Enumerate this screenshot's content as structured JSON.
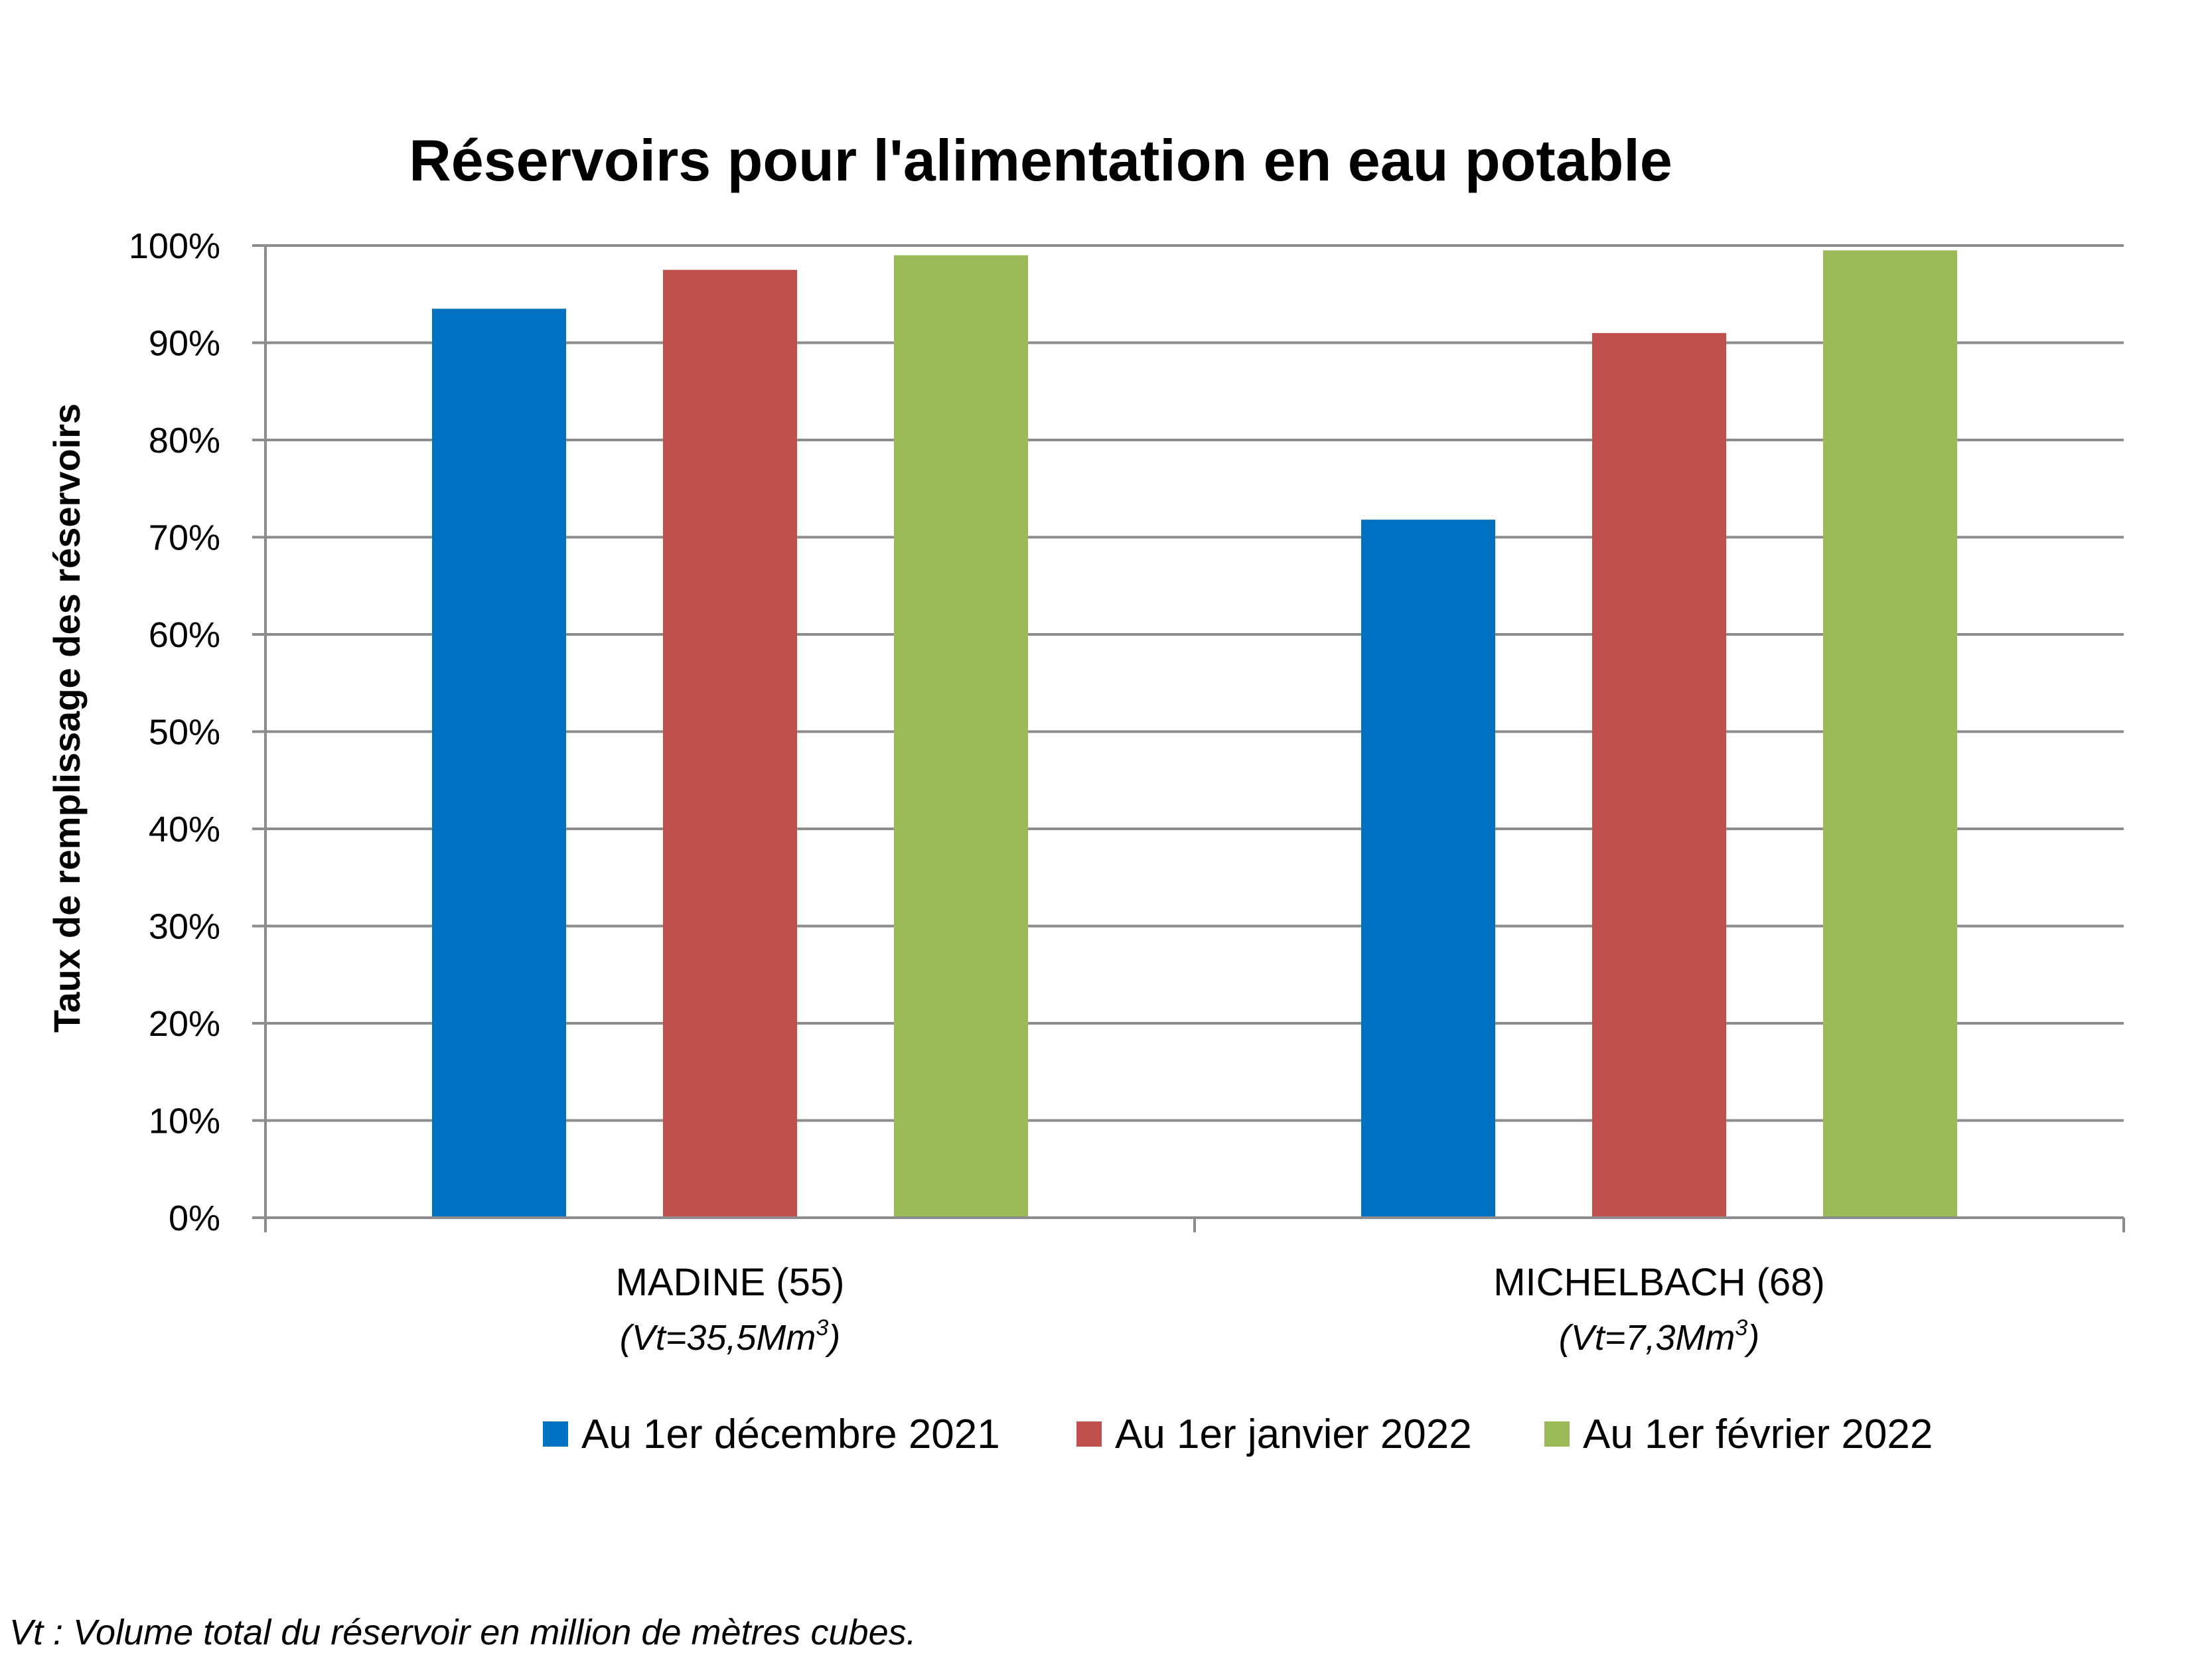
{
  "chart_data": {
    "type": "bar",
    "title": "Réservoirs pour l'alimentation en eau potable",
    "ylabel": "Taux de remplissage des réservoirs",
    "xlabel": "",
    "ylim": [
      0,
      100
    ],
    "y_ticks": [
      "0%",
      "10%",
      "20%",
      "30%",
      "40%",
      "50%",
      "60%",
      "70%",
      "80%",
      "90%",
      "100%"
    ],
    "categories": [
      {
        "label": "MADINE (55)",
        "sub_prefix": "(Vt=35,5Mm",
        "sup": "3",
        "sub_suffix": ")"
      },
      {
        "label": "MICHELBACH (68)",
        "sub_prefix": "(Vt=7,3Mm",
        "sup": "3",
        "sub_suffix": ")"
      }
    ],
    "series": [
      {
        "name": "Au 1er décembre 2021",
        "color": "#0070c0",
        "values": [
          93.5,
          71.8
        ]
      },
      {
        "name": "Au 1er janvier 2022",
        "color": "#c0504d",
        "values": [
          97.5,
          91.0
        ]
      },
      {
        "name": "Au 1er février 2022",
        "color": "#9bbb59",
        "values": [
          99.0,
          99.5
        ]
      }
    ],
    "grid": true,
    "legend_position": "bottom"
  },
  "footnote": "Vt : Volume total du réservoir en million de mètres cubes."
}
